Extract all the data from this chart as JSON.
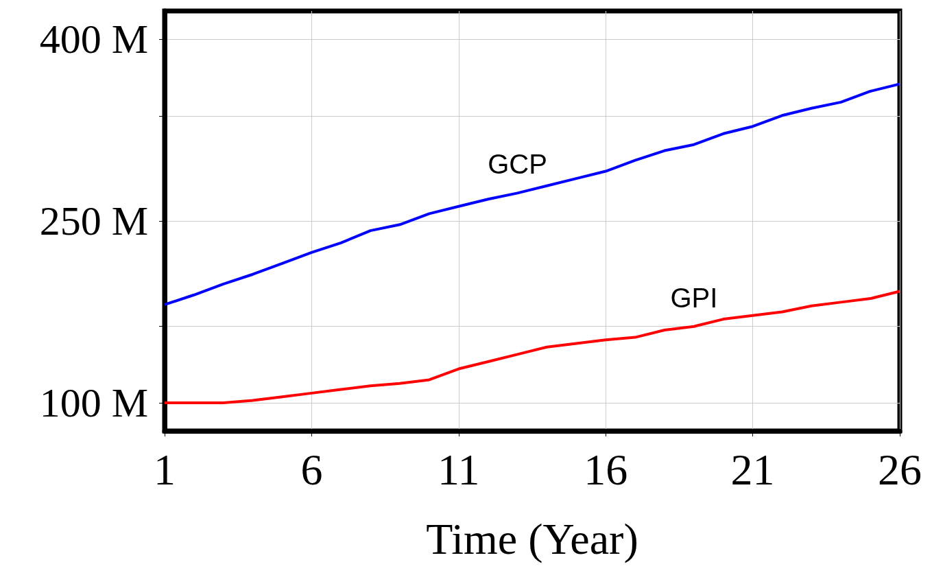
{
  "chart_data": {
    "type": "line",
    "xlabel": "Time (Year)",
    "x": [
      1,
      2,
      3,
      4,
      5,
      6,
      7,
      8,
      9,
      10,
      11,
      12,
      13,
      14,
      15,
      16,
      17,
      18,
      19,
      20,
      21,
      22,
      23,
      24,
      25,
      26
    ],
    "series": [
      {
        "name": "GCP",
        "color": "#0000ff",
        "values": [
          181,
          189,
          198,
          206,
          215,
          224,
          232,
          242,
          247,
          256,
          262,
          268,
          273,
          279,
          285,
          291,
          300,
          308,
          313,
          322,
          328,
          337,
          343,
          348,
          357,
          363
        ]
      },
      {
        "name": "GPI",
        "color": "#ff0000",
        "values": [
          100,
          100,
          100,
          102,
          105,
          108,
          111,
          114,
          116,
          119,
          128,
          134,
          140,
          146,
          149,
          152,
          154,
          160,
          163,
          169,
          172,
          175,
          180,
          183,
          186,
          192
        ]
      }
    ],
    "xlim": [
      1,
      26
    ],
    "xticks": [
      1,
      6,
      11,
      16,
      21,
      26
    ],
    "ylim": [
      76.8,
      423.2
    ],
    "yticks": [
      {
        "value": 100,
        "label": "100 M"
      },
      {
        "value": 163.4,
        "label": null
      },
      {
        "value": 250,
        "label": "250 M"
      },
      {
        "value": 336.6,
        "label": null
      },
      {
        "value": 400,
        "label": "400 M"
      }
    ],
    "grid": true,
    "marker": "none",
    "line_style": "solid",
    "legend": false
  }
}
